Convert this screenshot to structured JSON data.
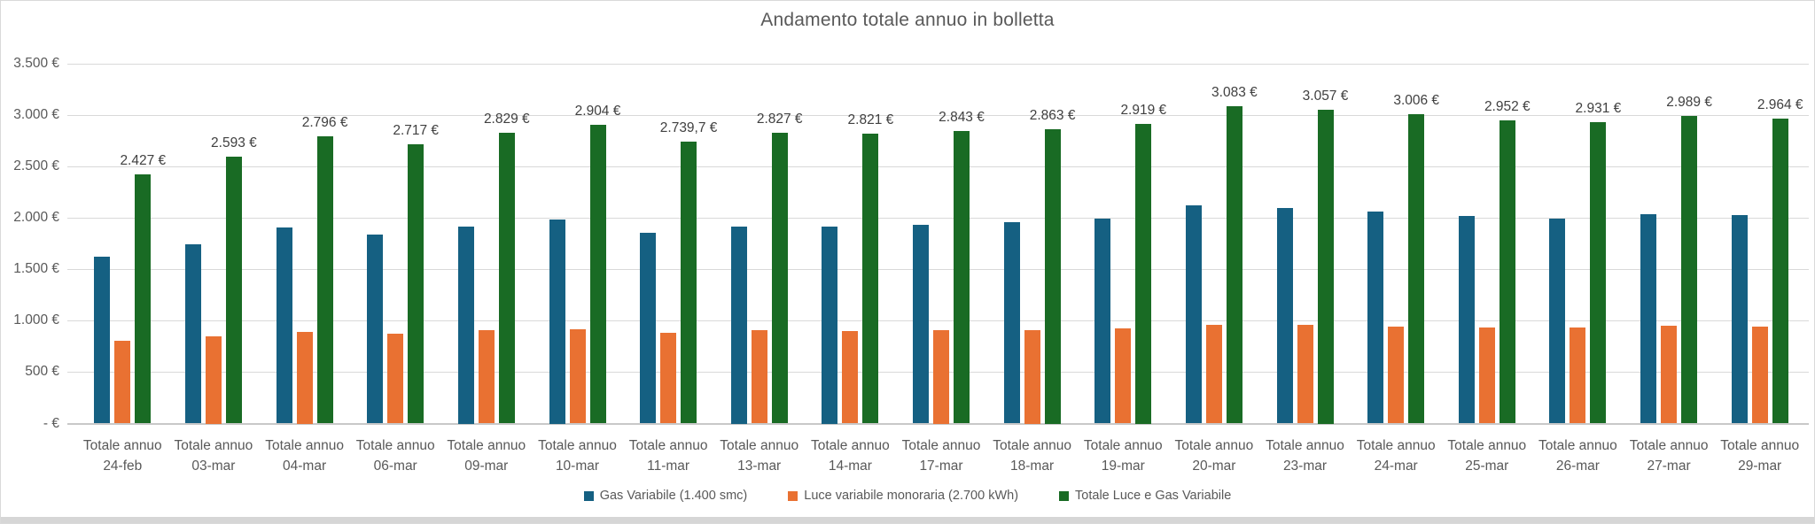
{
  "title": "Andamento totale annuo in bolletta",
  "chart_data": {
    "type": "bar",
    "title": "Andamento totale annuo in bolletta",
    "category_prefix": "Totale annuo",
    "categories": [
      "24-feb",
      "03-mar",
      "04-mar",
      "06-mar",
      "09-mar",
      "10-mar",
      "11-mar",
      "13-mar",
      "14-mar",
      "17-mar",
      "18-mar",
      "19-mar",
      "20-mar",
      "23-mar",
      "24-mar",
      "25-mar",
      "26-mar",
      "27-mar",
      "29-mar"
    ],
    "series": [
      {
        "name": "Gas Variabile (1.400 smc)",
        "color": "#156082",
        "values": [
          1620,
          1745,
          1905,
          1840,
          1920,
          1985,
          1855,
          1920,
          1920,
          1930,
          1955,
          1990,
          2120,
          2095,
          2060,
          2020,
          1995,
          2040,
          2025
        ]
      },
      {
        "name": "Luce variabile monoraria (2.700 kWh)",
        "color": "#E97132",
        "values": [
          807,
          848,
          891,
          877,
          909,
          919,
          884.7,
          907,
          901,
          913,
          908,
          929,
          963,
          962,
          946,
          932,
          936,
          949,
          939
        ]
      },
      {
        "name": "Totale Luce e Gas Variabile",
        "color": "#196B24",
        "values": [
          2427,
          2593,
          2796,
          2717,
          2829,
          2904,
          2739.7,
          2827,
          2821,
          2843,
          2863,
          2919,
          3083,
          3057,
          3006,
          2952,
          2931,
          2989,
          2964
        ],
        "value_labels": [
          "2.427 €",
          "2.593 €",
          "2.796 €",
          "2.717 €",
          "2.829 €",
          "2.904 €",
          "2.739,7 €",
          "2.827 €",
          "2.821 €",
          "2.843 €",
          "2.863 €",
          "2.919 €",
          "3.083 €",
          "3.057 €",
          "3.006 €",
          "2.952 €",
          "2.931 €",
          "2.989 €",
          "2.964 €"
        ]
      }
    ],
    "ylim": [
      0,
      3500
    ],
    "yticks": [
      {
        "value": 3500,
        "label": "3.500 €"
      },
      {
        "value": 3000,
        "label": "3.000 €"
      },
      {
        "value": 2500,
        "label": "2.500 €"
      },
      {
        "value": 2000,
        "label": "2.000 €"
      },
      {
        "value": 1500,
        "label": "1.500 €"
      },
      {
        "value": 1000,
        "label": "1.000 €"
      },
      {
        "value": 500,
        "label": "500 €"
      },
      {
        "value": 0,
        "label": "- €"
      }
    ],
    "grid": "horizontal",
    "legend_position": "bottom",
    "colors": {
      "title_text": "#595959",
      "axis_text": "#595959",
      "data_label_text": "#404040",
      "gridline": "#D9D9D9",
      "axis_line": "#C8C8C8",
      "panel_background": "#FFFFFF",
      "bottom_strip": "#D6D6D6"
    }
  }
}
